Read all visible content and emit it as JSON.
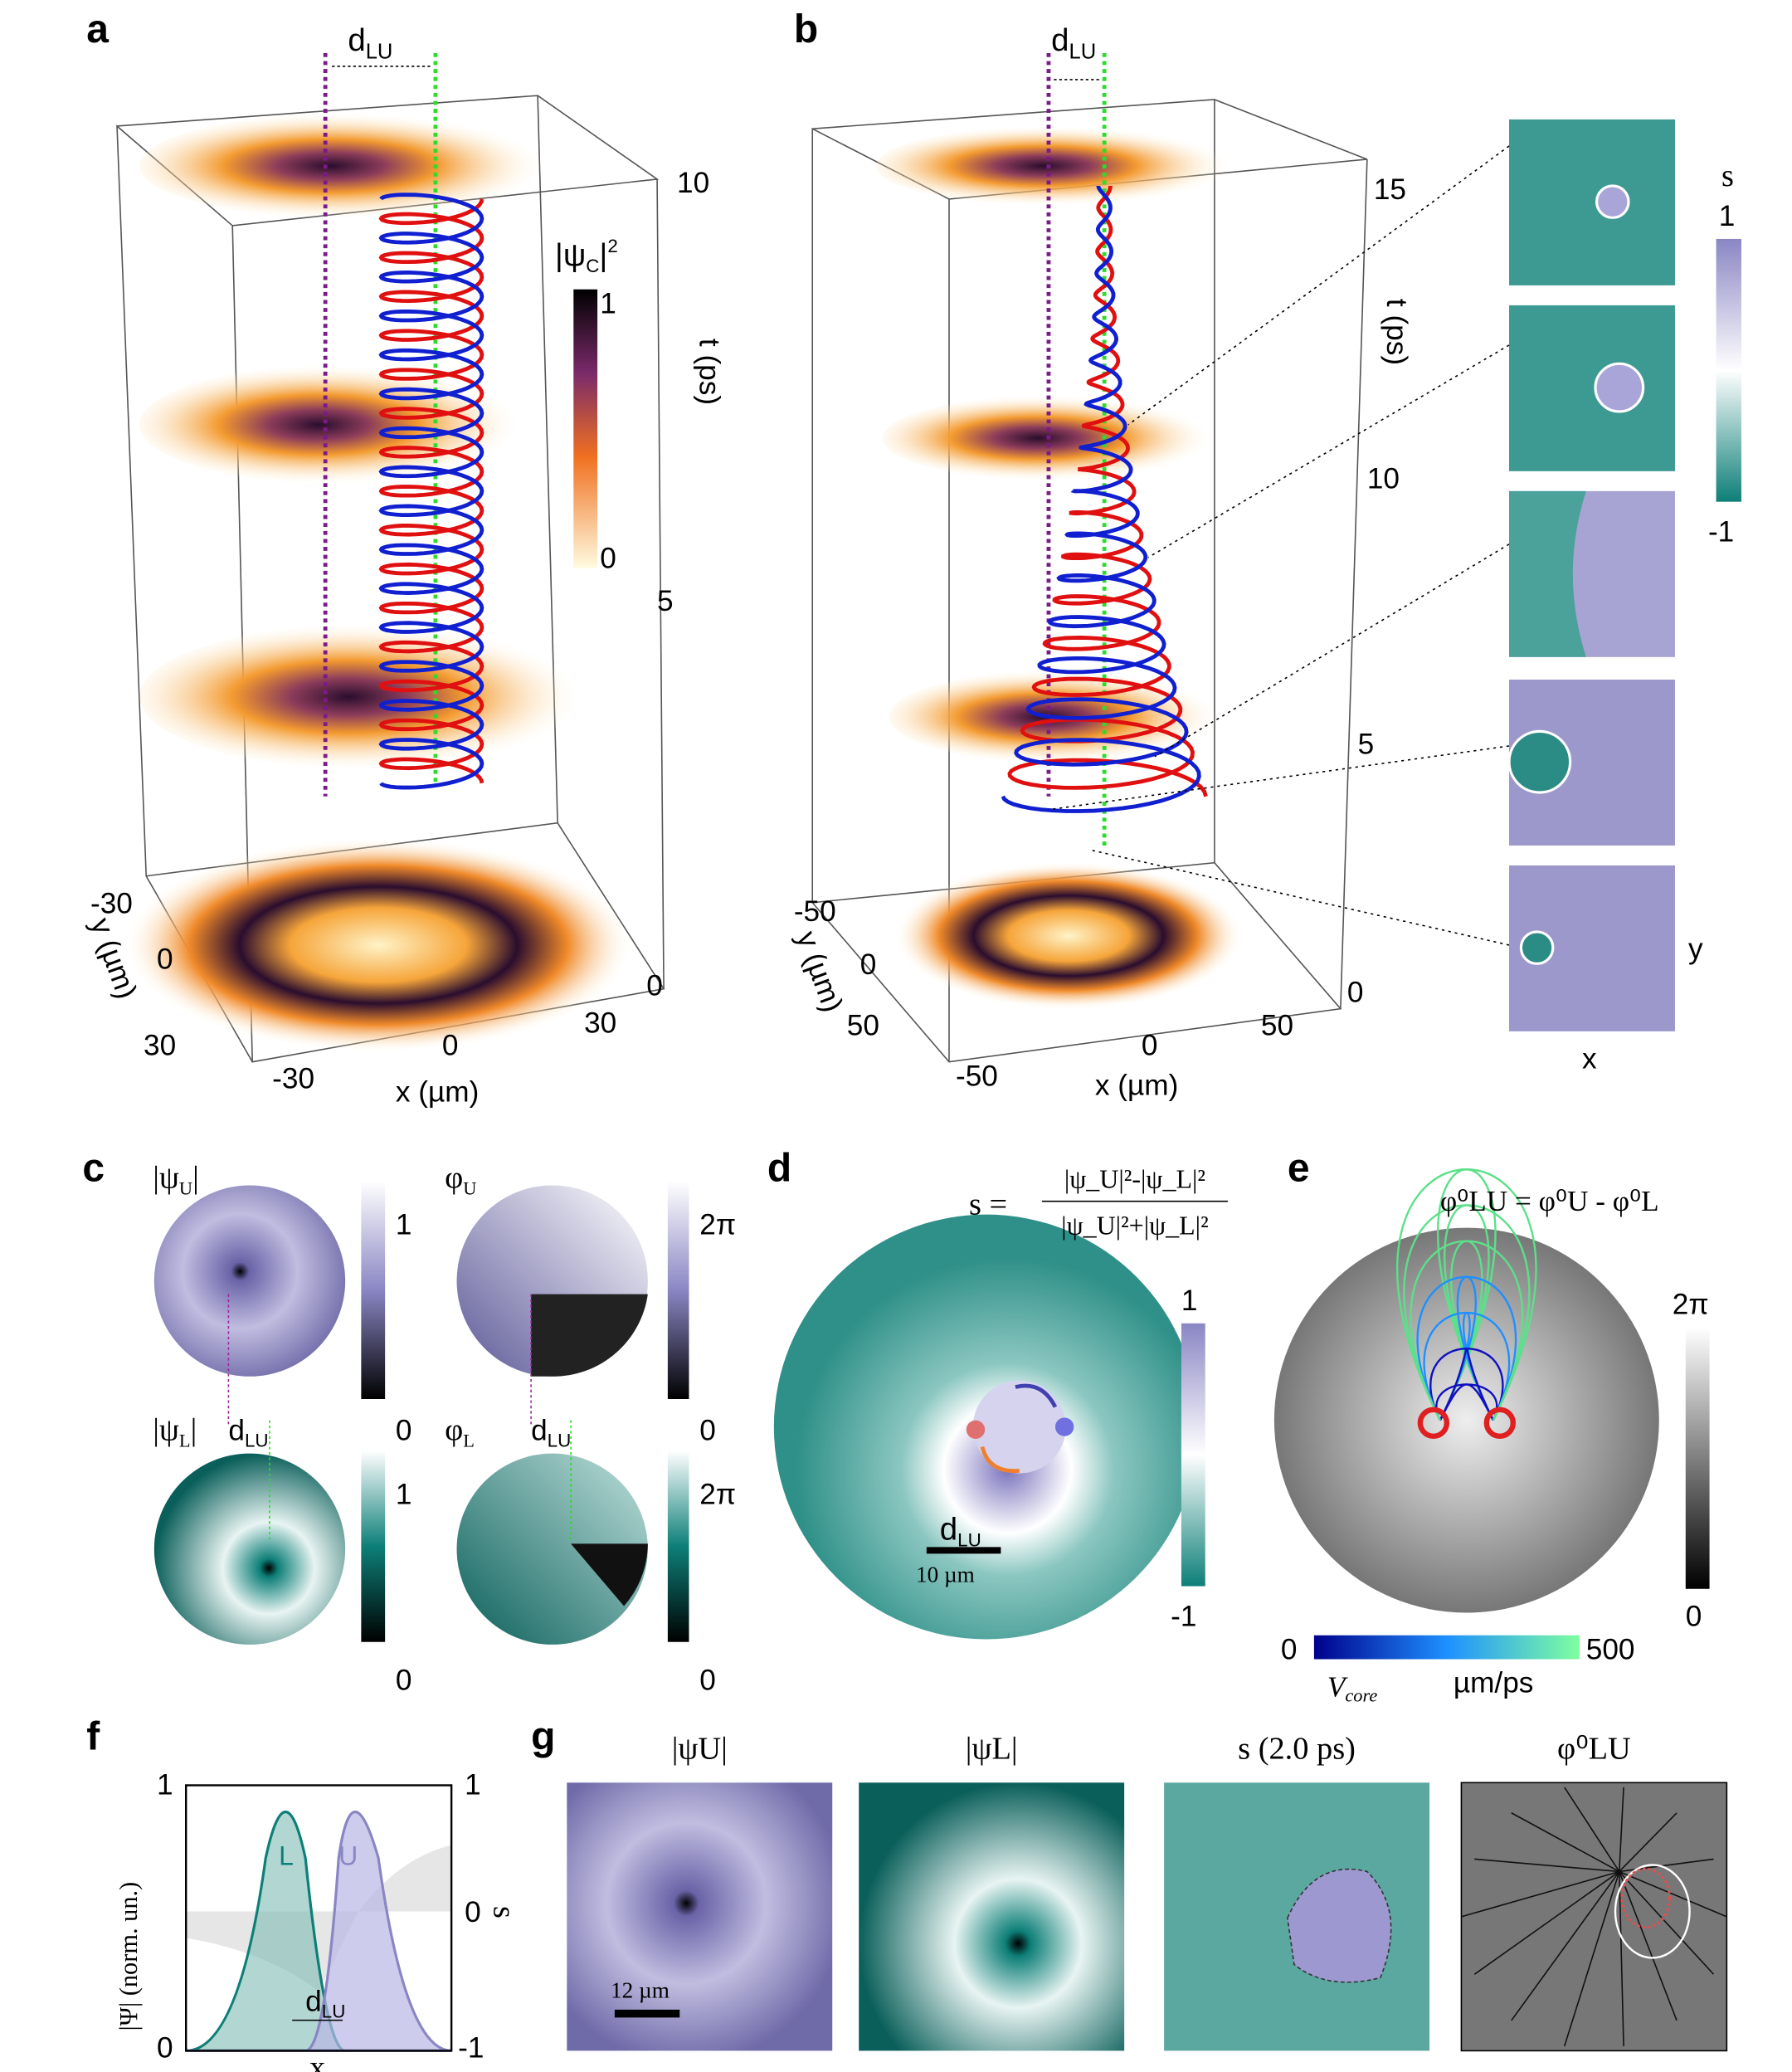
{
  "panel_a": {
    "label": "a",
    "d": "d",
    "d_sub": "LU",
    "t_axis": "t (ps)",
    "t_ticks": [
      "10",
      "5",
      "0"
    ],
    "cbar_title": {
      "open": "|ψ",
      "sub": "C",
      "close": "|",
      "sup": "2"
    },
    "cbar_ticks": [
      "1",
      "0"
    ],
    "y_axis": "y (µm)",
    "y_ticks": [
      "-30",
      "0",
      "30"
    ],
    "x_axis": "x (µm)",
    "x_ticks": [
      "-30",
      "0",
      "30"
    ]
  },
  "panel_b": {
    "label": "b",
    "d": "d",
    "d_sub": "LU",
    "t_axis": "t (ps)",
    "t_ticks": [
      "15",
      "10",
      "5",
      "0"
    ],
    "y_axis": "y (µm)",
    "y_ticks": [
      "-50",
      "0",
      "50"
    ],
    "x_axis": "x (µm)",
    "x_ticks": [
      "-50",
      "0",
      "50"
    ],
    "cbar_title": "s",
    "cbar_ticks": [
      "1",
      "-1"
    ],
    "inset_y": "y",
    "inset_x": "x"
  },
  "panel_c": {
    "label": "c",
    "titles": [
      {
        "main": "|ψ",
        "sub": "U",
        "end": "|"
      },
      {
        "main": "φ",
        "sub": "U",
        "end": ""
      },
      {
        "main": "|ψ",
        "sub": "L",
        "end": "|"
      },
      {
        "main": "φ",
        "sub": "L",
        "end": ""
      }
    ],
    "cbar_ticks": [
      [
        "1",
        "0"
      ],
      [
        "2π",
        "0"
      ],
      [
        "1",
        "0"
      ],
      [
        "2π",
        "0"
      ]
    ],
    "d": "d",
    "d_sub": "LU"
  },
  "panel_d": {
    "label": "d",
    "formula_lhs": "s =",
    "formula_num": "|ψ_U|²-|ψ_L|²",
    "formula_den": "|ψ_U|²+|ψ_L|²",
    "cbar_ticks": [
      "1",
      "-1"
    ],
    "d": "d",
    "d_sub": "LU",
    "scale": "10 µm"
  },
  "panel_e": {
    "label": "e",
    "formula": "φ⁰LU = φ⁰U - φ⁰L",
    "cbar_ticks": [
      "2π",
      "0"
    ],
    "v_ticks": [
      "0",
      "500"
    ],
    "v_label": "V",
    "v_sub": "core",
    "v_unit": "µm/ps"
  },
  "panel_f": {
    "label": "f",
    "y_axis": "|Ψ| (norm. un.)",
    "y2_axis": "s",
    "x_axis": "x",
    "y_ticks": [
      "1",
      "0"
    ],
    "y2_ticks": [
      "1",
      "0",
      "-1"
    ],
    "curve_L": "L",
    "curve_U": "U",
    "d": "d",
    "d_sub": "LU"
  },
  "panel_g": {
    "label": "g",
    "titles": [
      "|ψU|",
      "|ψL|",
      "s (2.0 ps)",
      "φ⁰LU"
    ],
    "scale": "12 µm"
  }
}
